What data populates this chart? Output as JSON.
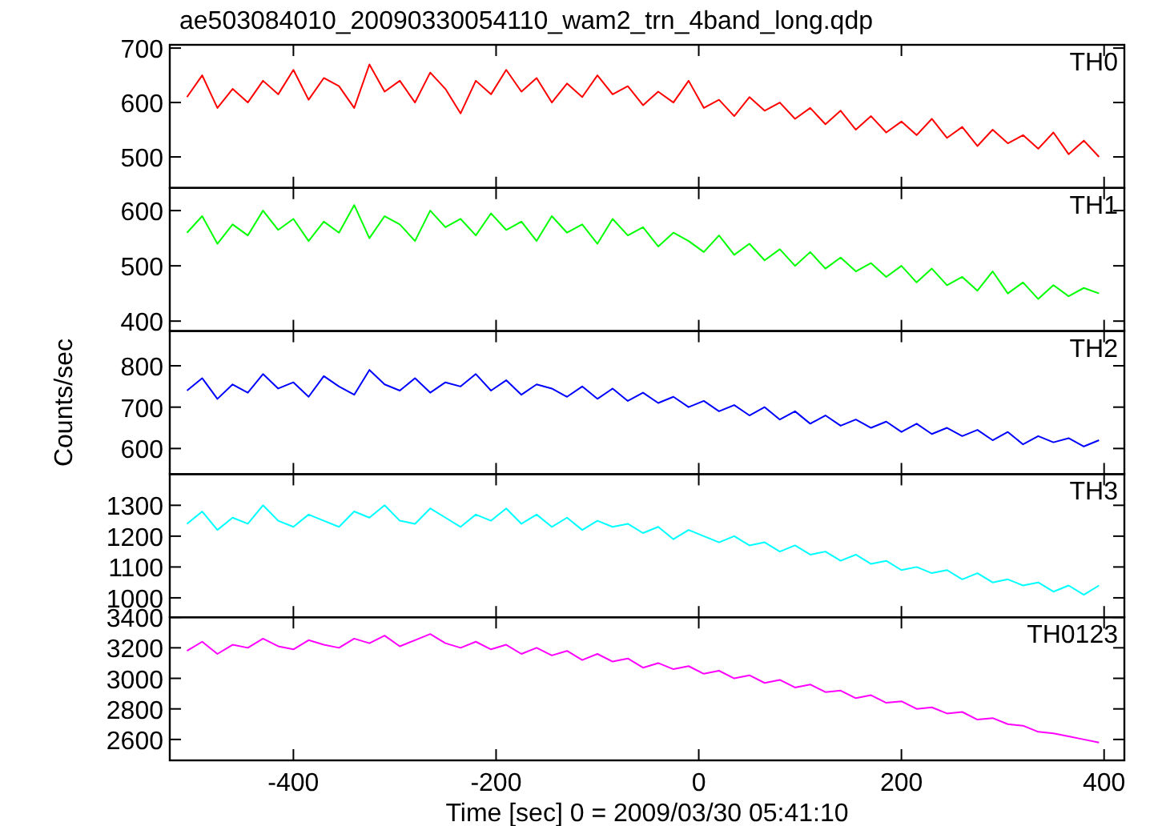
{
  "chart_data": [
    {
      "type": "line",
      "title": "ae503084010_20090330054110_wam2_trn_4band_long.qdp",
      "x": [
        -505,
        -490,
        -475,
        -460,
        -445,
        -430,
        -415,
        -400,
        -385,
        -370,
        -355,
        -340,
        -325,
        -310,
        -295,
        -280,
        -265,
        -250,
        -235,
        -220,
        -205,
        -190,
        -175,
        -160,
        -145,
        -130,
        -115,
        -100,
        -85,
        -70,
        -55,
        -40,
        -25,
        -10,
        5,
        20,
        35,
        50,
        65,
        80,
        95,
        110,
        125,
        140,
        155,
        170,
        185,
        200,
        215,
        230,
        245,
        260,
        275,
        290,
        305,
        320,
        335,
        350,
        365,
        380,
        395
      ],
      "xlim": [
        -522,
        420
      ],
      "xticks": [
        -400,
        -200,
        0,
        200,
        400
      ],
      "ylim": [
        443,
        706
      ],
      "yticks": [
        500,
        600,
        700
      ],
      "tick_labels": "y",
      "legend": "top right",
      "series": [
        {
          "name": "TH0",
          "color": "#ff0000",
          "values": [
            610,
            650,
            590,
            625,
            600,
            640,
            615,
            660,
            605,
            645,
            630,
            590,
            670,
            620,
            640,
            600,
            655,
            625,
            580,
            640,
            615,
            660,
            620,
            645,
            600,
            635,
            610,
            650,
            615,
            630,
            595,
            620,
            600,
            640,
            590,
            605,
            575,
            610,
            585,
            600,
            570,
            590,
            560,
            585,
            550,
            575,
            545,
            565,
            540,
            570,
            535,
            555,
            520,
            550,
            525,
            540,
            515,
            545,
            505,
            530,
            500
          ]
        }
      ]
    },
    {
      "type": "line",
      "x": [
        -505,
        -490,
        -475,
        -460,
        -445,
        -430,
        -415,
        -400,
        -385,
        -370,
        -355,
        -340,
        -325,
        -310,
        -295,
        -280,
        -265,
        -250,
        -235,
        -220,
        -205,
        -190,
        -175,
        -160,
        -145,
        -130,
        -115,
        -100,
        -85,
        -70,
        -55,
        -40,
        -25,
        -10,
        5,
        20,
        35,
        50,
        65,
        80,
        95,
        110,
        125,
        140,
        155,
        170,
        185,
        200,
        215,
        230,
        245,
        260,
        275,
        290,
        305,
        320,
        335,
        350,
        365,
        380,
        395
      ],
      "xlim": [
        -522,
        420
      ],
      "xticks": [
        -400,
        -200,
        0,
        200,
        400
      ],
      "ylim": [
        382,
        641
      ],
      "yticks": [
        400,
        500,
        600
      ],
      "tick_labels": "y",
      "legend": "top right",
      "series": [
        {
          "name": "TH1",
          "color": "#00ff00",
          "values": [
            560,
            590,
            540,
            575,
            555,
            600,
            565,
            585,
            545,
            580,
            560,
            610,
            550,
            590,
            575,
            545,
            600,
            570,
            585,
            555,
            595,
            565,
            580,
            545,
            590,
            560,
            575,
            540,
            585,
            555,
            570,
            535,
            560,
            545,
            525,
            555,
            520,
            540,
            510,
            530,
            500,
            525,
            495,
            515,
            490,
            505,
            480,
            500,
            470,
            495,
            465,
            480,
            455,
            490,
            450,
            470,
            440,
            465,
            445,
            460,
            450
          ]
        }
      ]
    },
    {
      "type": "line",
      "ylabel": "Counts/sec",
      "x": [
        -505,
        -490,
        -475,
        -460,
        -445,
        -430,
        -415,
        -400,
        -385,
        -370,
        -355,
        -340,
        -325,
        -310,
        -295,
        -280,
        -265,
        -250,
        -235,
        -220,
        -205,
        -190,
        -175,
        -160,
        -145,
        -130,
        -115,
        -100,
        -85,
        -70,
        -55,
        -40,
        -25,
        -10,
        5,
        20,
        35,
        50,
        65,
        80,
        95,
        110,
        125,
        140,
        155,
        170,
        185,
        200,
        215,
        230,
        245,
        260,
        275,
        290,
        305,
        320,
        335,
        350,
        365,
        380,
        395
      ],
      "xlim": [
        -522,
        420
      ],
      "xticks": [
        -400,
        -200,
        0,
        200,
        400
      ],
      "ylim": [
        538,
        884
      ],
      "yticks": [
        600,
        700,
        800
      ],
      "tick_labels": "y",
      "legend": "top right",
      "series": [
        {
          "name": "TH2",
          "color": "#0000ff",
          "values": [
            740,
            770,
            720,
            755,
            735,
            780,
            745,
            760,
            725,
            775,
            750,
            730,
            790,
            755,
            740,
            770,
            735,
            760,
            750,
            780,
            740,
            765,
            730,
            755,
            745,
            725,
            750,
            720,
            745,
            715,
            735,
            710,
            725,
            700,
            715,
            690,
            705,
            680,
            700,
            670,
            690,
            660,
            680,
            655,
            670,
            650,
            665,
            640,
            660,
            635,
            650,
            630,
            645,
            620,
            640,
            610,
            630,
            615,
            625,
            605,
            620
          ]
        }
      ]
    },
    {
      "type": "line",
      "x": [
        -505,
        -490,
        -475,
        -460,
        -445,
        -430,
        -415,
        -400,
        -385,
        -370,
        -355,
        -340,
        -325,
        -310,
        -295,
        -280,
        -265,
        -250,
        -235,
        -220,
        -205,
        -190,
        -175,
        -160,
        -145,
        -130,
        -115,
        -100,
        -85,
        -70,
        -55,
        -40,
        -25,
        -10,
        5,
        20,
        35,
        50,
        65,
        80,
        95,
        110,
        125,
        140,
        155,
        170,
        185,
        200,
        215,
        230,
        245,
        260,
        275,
        290,
        305,
        320,
        335,
        350,
        365,
        380,
        395
      ],
      "xlim": [
        -522,
        420
      ],
      "xticks": [
        -400,
        -200,
        0,
        200,
        400
      ],
      "ylim": [
        937,
        1401
      ],
      "yticks": [
        1000,
        1100,
        1200,
        1300
      ],
      "tick_labels": "y",
      "legend": "top right",
      "series": [
        {
          "name": "TH3",
          "color": "#00ffff",
          "values": [
            1240,
            1280,
            1220,
            1260,
            1240,
            1300,
            1250,
            1230,
            1270,
            1250,
            1230,
            1280,
            1260,
            1300,
            1250,
            1240,
            1290,
            1260,
            1230,
            1270,
            1250,
            1290,
            1240,
            1270,
            1230,
            1260,
            1220,
            1250,
            1230,
            1240,
            1210,
            1230,
            1190,
            1220,
            1200,
            1180,
            1200,
            1170,
            1180,
            1150,
            1170,
            1140,
            1150,
            1120,
            1140,
            1110,
            1120,
            1090,
            1100,
            1080,
            1090,
            1060,
            1080,
            1050,
            1060,
            1040,
            1050,
            1020,
            1040,
            1010,
            1040
          ]
        }
      ]
    },
    {
      "type": "line",
      "xlabel": "Time [sec] 0 = 2009/03/30 05:41:10",
      "x": [
        -505,
        -490,
        -475,
        -460,
        -445,
        -430,
        -415,
        -400,
        -385,
        -370,
        -355,
        -340,
        -325,
        -310,
        -295,
        -280,
        -265,
        -250,
        -235,
        -220,
        -205,
        -190,
        -175,
        -160,
        -145,
        -130,
        -115,
        -100,
        -85,
        -70,
        -55,
        -40,
        -25,
        -10,
        5,
        20,
        35,
        50,
        65,
        80,
        95,
        110,
        125,
        140,
        155,
        170,
        185,
        200,
        215,
        230,
        245,
        260,
        275,
        290,
        305,
        320,
        335,
        350,
        365,
        380,
        395
      ],
      "xlim": [
        -522,
        420
      ],
      "xticks": [
        -400,
        -200,
        0,
        200,
        400
      ],
      "ylim": [
        2463,
        3400
      ],
      "yticks": [
        2600,
        2800,
        3000,
        3200,
        3400
      ],
      "legend": "top right",
      "series": [
        {
          "name": "TH0123",
          "color": "#ff00ff",
          "values": [
            3180,
            3240,
            3160,
            3220,
            3200,
            3260,
            3210,
            3190,
            3250,
            3220,
            3200,
            3260,
            3230,
            3280,
            3210,
            3250,
            3290,
            3230,
            3200,
            3240,
            3190,
            3220,
            3160,
            3200,
            3150,
            3180,
            3120,
            3160,
            3110,
            3130,
            3070,
            3100,
            3060,
            3080,
            3030,
            3050,
            3000,
            3020,
            2970,
            2990,
            2940,
            2960,
            2910,
            2920,
            2870,
            2890,
            2840,
            2850,
            2800,
            2810,
            2770,
            2780,
            2730,
            2740,
            2700,
            2690,
            2650,
            2640,
            2620,
            2600,
            2580
          ]
        }
      ]
    }
  ]
}
